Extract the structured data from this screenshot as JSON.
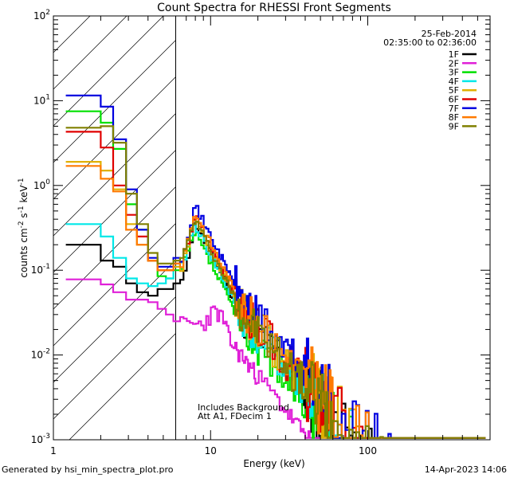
{
  "footer": {
    "generator": "Generated by hsi_min_spectra_plot.pro",
    "date": "14-Apr-2023 14:06"
  },
  "chart_data": {
    "type": "line",
    "title": "Count Spectra for RHESSI Front Segments",
    "date_label": "25-Feb-2014",
    "time_range": "02:35:00 to 02:36:00",
    "xlabel": "Energy (keV)",
    "ylabel_main": "counts cm",
    "ylabel_parts": [
      "counts cm",
      "-2",
      " s",
      "-1",
      " keV",
      "-1"
    ],
    "xscale": "log",
    "yscale": "log",
    "xlim": [
      1,
      600
    ],
    "ylim": [
      0.001,
      100
    ],
    "x_ticks": [
      {
        "value": 1,
        "label": "1"
      },
      {
        "value": 10,
        "label": "10"
      },
      {
        "value": 100,
        "label": "100"
      }
    ],
    "y_ticks": [
      {
        "value": 0.001,
        "base": "10",
        "exp": "-3"
      },
      {
        "value": 0.01,
        "base": "10",
        "exp": "-2"
      },
      {
        "value": 0.1,
        "base": "10",
        "exp": "-1"
      },
      {
        "value": 1,
        "base": "10",
        "exp": "0"
      },
      {
        "value": 10,
        "base": "10",
        "exp": "1"
      },
      {
        "value": 100,
        "base": "10",
        "exp": "2"
      }
    ],
    "hatched_region": {
      "x_start": 1,
      "x_end": 6
    },
    "annotations": [
      "Includes Background",
      "Att A1, FDecim  1"
    ],
    "legend_position": "top-right",
    "series": [
      {
        "name": "1F",
        "color": "#000000",
        "low": [
          0.2,
          0.2,
          0.13,
          0.11,
          0.07,
          0.055,
          0.05,
          0.06,
          0.06,
          0.07
        ],
        "peak": 0.37,
        "seed": 11
      },
      {
        "name": "2F",
        "color": "#e020d8",
        "low": [
          0.078,
          0.078,
          0.068,
          0.055,
          0.045,
          0.045,
          0.042,
          0.035,
          0.03,
          0.025
        ],
        "peak": 0.032,
        "seed": 23
      },
      {
        "name": "3F",
        "color": "#00e000",
        "low": [
          7.5,
          7.5,
          5.5,
          2.7,
          0.6,
          0.3,
          0.13,
          0.085,
          0.08,
          0.1
        ],
        "peak": 0.28,
        "seed": 37
      },
      {
        "name": "4F",
        "color": "#00e8e8",
        "low": [
          0.35,
          0.35,
          0.25,
          0.14,
          0.08,
          0.07,
          0.065,
          0.07,
          0.08,
          0.11
        ],
        "peak": 0.35,
        "seed": 41
      },
      {
        "name": "5F",
        "color": "#e0b000",
        "low": [
          1.9,
          1.9,
          1.5,
          0.9,
          0.35,
          0.2,
          0.13,
          0.1,
          0.1,
          0.11
        ],
        "peak": 0.42,
        "seed": 53
      },
      {
        "name": "6F",
        "color": "#e00000",
        "low": [
          4.3,
          4.3,
          2.8,
          1.0,
          0.45,
          0.25,
          0.13,
          0.1,
          0.1,
          0.12
        ],
        "peak": 0.45,
        "seed": 67
      },
      {
        "name": "7F",
        "color": "#0000e0",
        "low": [
          11.5,
          11.5,
          8.5,
          3.5,
          0.9,
          0.3,
          0.14,
          0.11,
          0.11,
          0.14
        ],
        "peak": 0.58,
        "seed": 71
      },
      {
        "name": "8F",
        "color": "#ff7a00",
        "low": [
          1.7,
          1.7,
          1.2,
          0.85,
          0.3,
          0.2,
          0.13,
          0.1,
          0.1,
          0.12
        ],
        "peak": 0.48,
        "seed": 83
      },
      {
        "name": "9F",
        "color": "#808000",
        "low": [
          4.8,
          4.8,
          5.0,
          3.2,
          0.8,
          0.35,
          0.16,
          0.12,
          0.12,
          0.13
        ],
        "peak": 0.4,
        "seed": 97
      }
    ]
  }
}
